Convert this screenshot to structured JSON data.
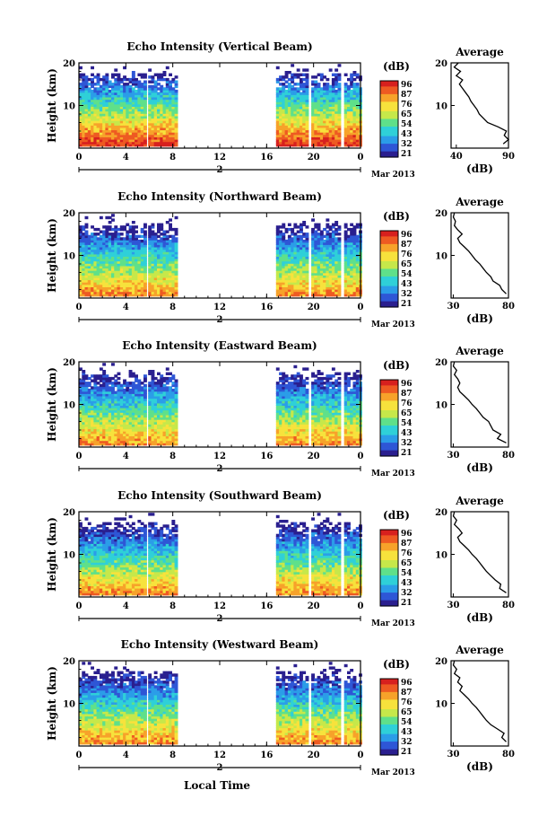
{
  "chart_data": [
    {
      "type": "heatmap",
      "title": "Echo Intensity (Vertical Beam)",
      "ylabel": "Height (km)",
      "xticks": [
        "0",
        "4",
        "8",
        "12",
        "16",
        "20",
        "0"
      ],
      "date_marker": "2",
      "month_label": "Mar 2013",
      "yticks": [
        "20",
        "10"
      ],
      "ylim": [
        0,
        20
      ],
      "xlim": [
        0,
        24
      ],
      "colorbar": {
        "unit": "(dB)",
        "ticks": [
          "96",
          "87",
          "76",
          "65",
          "54",
          "43",
          "32",
          "21"
        ]
      },
      "average": {
        "title": "Average",
        "xlabel": "(dB)",
        "xticks": [
          "40",
          "90"
        ],
        "xlim": [
          35,
          90
        ],
        "profile": [
          [
            1,
            85
          ],
          [
            2,
            90
          ],
          [
            3,
            86
          ],
          [
            4,
            88
          ],
          [
            5,
            80
          ],
          [
            6,
            70
          ],
          [
            7,
            66
          ],
          [
            8,
            62
          ],
          [
            9,
            60
          ],
          [
            10,
            57
          ],
          [
            11,
            54
          ],
          [
            12,
            52
          ],
          [
            13,
            49
          ],
          [
            14,
            46
          ],
          [
            15,
            43
          ],
          [
            16,
            46
          ],
          [
            17,
            40
          ],
          [
            18,
            44
          ],
          [
            19,
            38
          ],
          [
            20,
            42
          ]
        ]
      }
    },
    {
      "type": "heatmap",
      "title": "Echo Intensity (Northward Beam)",
      "ylabel": "Height (km)",
      "xticks": [
        "0",
        "4",
        "8",
        "12",
        "16",
        "20",
        "0"
      ],
      "date_marker": "2",
      "month_label": "Mar 2013",
      "yticks": [
        "20",
        "10"
      ],
      "ylim": [
        0,
        20
      ],
      "xlim": [
        0,
        24
      ],
      "colorbar": {
        "unit": "(dB)",
        "ticks": [
          "96",
          "87",
          "76",
          "65",
          "54",
          "43",
          "32",
          "21"
        ]
      },
      "average": {
        "title": "Average",
        "xlabel": "(dB)",
        "xticks": [
          "30",
          "80"
        ],
        "xlim": [
          28,
          80
        ],
        "profile": [
          [
            1,
            78
          ],
          [
            2,
            74
          ],
          [
            3,
            72
          ],
          [
            4,
            66
          ],
          [
            5,
            64
          ],
          [
            6,
            60
          ],
          [
            7,
            57
          ],
          [
            8,
            54
          ],
          [
            9,
            50
          ],
          [
            10,
            47
          ],
          [
            11,
            44
          ],
          [
            12,
            40
          ],
          [
            13,
            36
          ],
          [
            14,
            34
          ],
          [
            15,
            38
          ],
          [
            16,
            34
          ],
          [
            17,
            31
          ],
          [
            18,
            32
          ],
          [
            19,
            30
          ],
          [
            20,
            31
          ]
        ]
      }
    },
    {
      "type": "heatmap",
      "title": "Echo Intensity (Eastward Beam)",
      "ylabel": "Height (km)",
      "xticks": [
        "0",
        "4",
        "8",
        "12",
        "16",
        "20",
        "0"
      ],
      "date_marker": "2",
      "month_label": "Mar 2013",
      "yticks": [
        "20",
        "10"
      ],
      "ylim": [
        0,
        20
      ],
      "xlim": [
        0,
        24
      ],
      "colorbar": {
        "unit": "(dB)",
        "ticks": [
          "96",
          "87",
          "76",
          "65",
          "54",
          "43",
          "32",
          "21"
        ]
      },
      "average": {
        "title": "Average",
        "xlabel": "(dB)",
        "xticks": [
          "30",
          "80"
        ],
        "xlim": [
          28,
          80
        ],
        "profile": [
          [
            1,
            78
          ],
          [
            2,
            70
          ],
          [
            3,
            73
          ],
          [
            4,
            66
          ],
          [
            5,
            64
          ],
          [
            6,
            62
          ],
          [
            7,
            57
          ],
          [
            8,
            54
          ],
          [
            9,
            51
          ],
          [
            10,
            47
          ],
          [
            11,
            44
          ],
          [
            12,
            40
          ],
          [
            13,
            36
          ],
          [
            14,
            34
          ],
          [
            15,
            36
          ],
          [
            16,
            34
          ],
          [
            17,
            31
          ],
          [
            18,
            33
          ],
          [
            19,
            30
          ],
          [
            20,
            31
          ]
        ]
      }
    },
    {
      "type": "heatmap",
      "title": "Echo Intensity (Southward Beam)",
      "ylabel": "Height (km)",
      "xticks": [
        "0",
        "4",
        "8",
        "12",
        "16",
        "20",
        "0"
      ],
      "date_marker": "2",
      "month_label": "Mar 2013",
      "yticks": [
        "20",
        "10"
      ],
      "ylim": [
        0,
        20
      ],
      "xlim": [
        0,
        24
      ],
      "colorbar": {
        "unit": "(dB)",
        "ticks": [
          "96",
          "87",
          "76",
          "65",
          "54",
          "43",
          "32",
          "21"
        ]
      },
      "average": {
        "title": "Average",
        "xlabel": "(dB)",
        "xticks": [
          "30",
          "80"
        ],
        "xlim": [
          28,
          80
        ],
        "profile": [
          [
            1,
            78
          ],
          [
            2,
            72
          ],
          [
            3,
            73
          ],
          [
            4,
            68
          ],
          [
            5,
            64
          ],
          [
            6,
            60
          ],
          [
            7,
            57
          ],
          [
            8,
            54
          ],
          [
            9,
            51
          ],
          [
            10,
            47
          ],
          [
            11,
            44
          ],
          [
            12,
            40
          ],
          [
            13,
            36
          ],
          [
            14,
            34
          ],
          [
            15,
            38
          ],
          [
            16,
            35
          ],
          [
            17,
            31
          ],
          [
            18,
            33
          ],
          [
            19,
            30
          ],
          [
            20,
            31
          ]
        ]
      }
    },
    {
      "type": "heatmap",
      "title": "Echo Intensity (Westward Beam)",
      "ylabel": "Height (km)",
      "xticks": [
        "0",
        "4",
        "8",
        "12",
        "16",
        "20",
        "0"
      ],
      "date_marker": "2",
      "month_label": "Mar 2013",
      "yticks": [
        "20",
        "10"
      ],
      "ylim": [
        0,
        20
      ],
      "xlim": [
        0,
        24
      ],
      "colorbar": {
        "unit": "(dB)",
        "ticks": [
          "96",
          "87",
          "76",
          "65",
          "54",
          "43",
          "32",
          "21"
        ]
      },
      "average": {
        "title": "Average",
        "xlabel": "(dB)",
        "xticks": [
          "30",
          "80"
        ],
        "xlim": [
          28,
          80
        ],
        "profile": [
          [
            1,
            78
          ],
          [
            2,
            74
          ],
          [
            3,
            76
          ],
          [
            4,
            70
          ],
          [
            5,
            64
          ],
          [
            6,
            60
          ],
          [
            7,
            57
          ],
          [
            8,
            54
          ],
          [
            9,
            51
          ],
          [
            10,
            47
          ],
          [
            11,
            44
          ],
          [
            12,
            40
          ],
          [
            13,
            36
          ],
          [
            14,
            38
          ],
          [
            15,
            34
          ],
          [
            16,
            36
          ],
          [
            17,
            31
          ],
          [
            18,
            33
          ],
          [
            19,
            30
          ],
          [
            20,
            31
          ]
        ]
      }
    }
  ],
  "footer": {
    "xlabel": "Local Time"
  },
  "colors": {
    "scale": [
      "#2a1f8f",
      "#2e56d6",
      "#2b9de8",
      "#2fd0d8",
      "#5fe08a",
      "#c6e84a",
      "#f7e23c",
      "#f7a22a",
      "#ee5a22",
      "#d7201e"
    ]
  }
}
